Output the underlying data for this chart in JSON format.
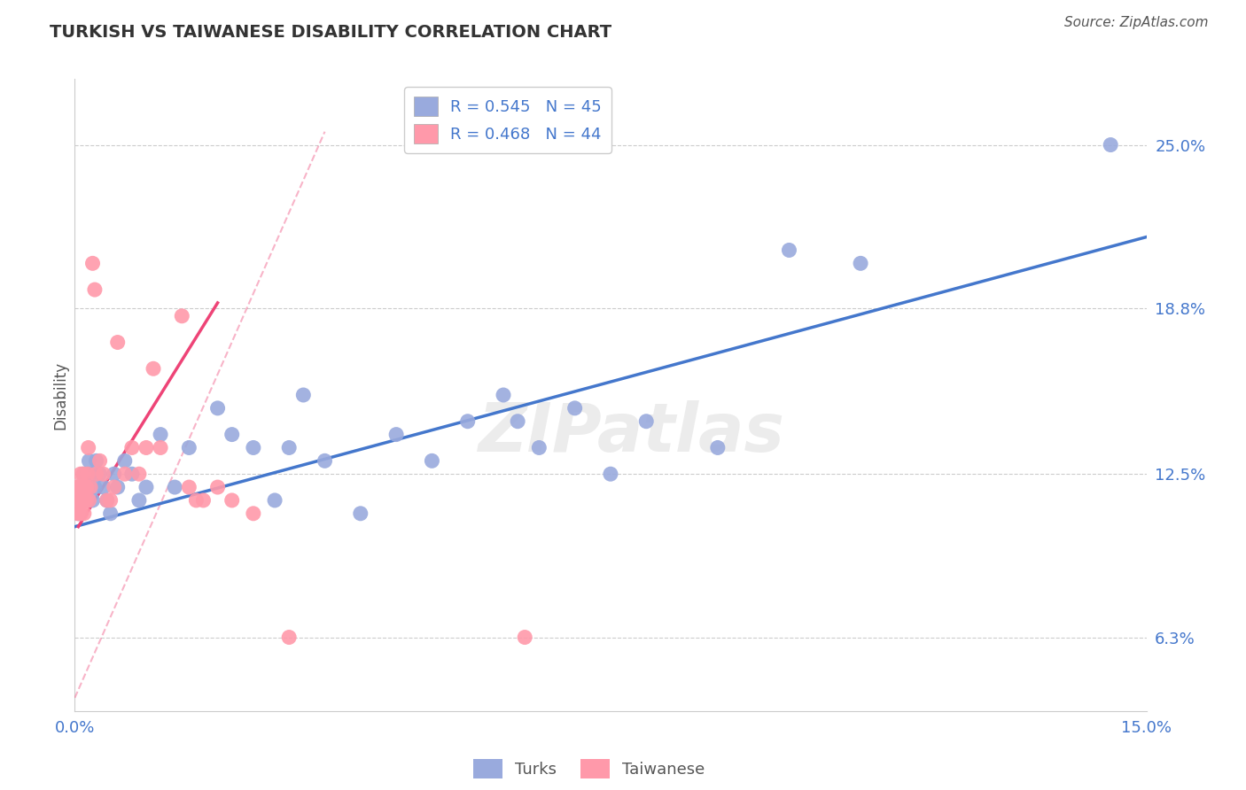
{
  "title": "TURKISH VS TAIWANESE DISABILITY CORRELATION CHART",
  "source": "Source: ZipAtlas.com",
  "ylabel": "Disability",
  "xlim": [
    0.0,
    15.0
  ],
  "ylim": [
    3.5,
    27.5
  ],
  "xticks": [
    0.0,
    3.75,
    7.5,
    11.25,
    15.0
  ],
  "xticklabels": [
    "0.0%",
    "",
    "",
    "",
    "15.0%"
  ],
  "yticks": [
    6.3,
    12.5,
    18.8,
    25.0
  ],
  "yticklabels": [
    "6.3%",
    "12.5%",
    "18.8%",
    "25.0%"
  ],
  "turks_R": 0.545,
  "turks_N": 45,
  "taiwanese_R": 0.468,
  "taiwanese_N": 44,
  "blue_color": "#99AADD",
  "pink_color": "#FF99AA",
  "blue_line_color": "#4477CC",
  "pink_line_color": "#EE4477",
  "legend_text_color": "#4477CC",
  "tick_color": "#4477CC",
  "title_color": "#333333",
  "grid_color": "#CCCCCC",
  "turks_x": [
    0.05,
    0.08,
    0.1,
    0.12,
    0.15,
    0.18,
    0.2,
    0.22,
    0.25,
    0.28,
    0.3,
    0.35,
    0.4,
    0.45,
    0.5,
    0.55,
    0.6,
    0.7,
    0.8,
    0.9,
    1.0,
    1.2,
    1.4,
    1.6,
    2.0,
    2.2,
    2.5,
    2.8,
    3.0,
    3.2,
    3.5,
    4.0,
    4.5,
    5.0,
    5.5,
    6.0,
    6.2,
    6.5,
    7.0,
    7.5,
    8.0,
    9.0,
    10.0,
    11.0,
    14.5
  ],
  "turks_y": [
    11.0,
    11.5,
    12.0,
    12.5,
    11.5,
    12.0,
    13.0,
    12.5,
    11.5,
    12.0,
    13.0,
    12.5,
    12.0,
    11.5,
    11.0,
    12.5,
    12.0,
    13.0,
    12.5,
    11.5,
    12.0,
    14.0,
    12.0,
    13.5,
    15.0,
    14.0,
    13.5,
    11.5,
    13.5,
    15.5,
    13.0,
    11.0,
    14.0,
    13.0,
    14.5,
    15.5,
    14.5,
    13.5,
    15.0,
    12.5,
    14.5,
    13.5,
    21.0,
    20.5,
    25.0
  ],
  "taiwanese_x": [
    0.02,
    0.03,
    0.04,
    0.05,
    0.06,
    0.07,
    0.08,
    0.09,
    0.1,
    0.11,
    0.12,
    0.13,
    0.14,
    0.15,
    0.16,
    0.17,
    0.18,
    0.19,
    0.2,
    0.22,
    0.25,
    0.28,
    0.3,
    0.35,
    0.4,
    0.45,
    0.5,
    0.55,
    0.6,
    0.7,
    0.8,
    0.9,
    1.0,
    1.1,
    1.2,
    1.5,
    1.6,
    1.7,
    1.8,
    2.0,
    2.2,
    2.5,
    3.0,
    6.3
  ],
  "taiwanese_y": [
    12.0,
    11.5,
    11.0,
    12.0,
    11.5,
    11.0,
    12.5,
    11.0,
    12.0,
    11.5,
    12.5,
    11.0,
    11.5,
    12.0,
    11.5,
    12.0,
    12.5,
    13.5,
    11.5,
    12.0,
    20.5,
    19.5,
    12.5,
    13.0,
    12.5,
    11.5,
    11.5,
    12.0,
    17.5,
    12.5,
    13.5,
    12.5,
    13.5,
    16.5,
    13.5,
    18.5,
    12.0,
    11.5,
    11.5,
    12.0,
    11.5,
    11.0,
    6.3,
    6.3
  ],
  "blue_line_x0": 0.0,
  "blue_line_y0": 10.5,
  "blue_line_x1": 15.0,
  "blue_line_y1": 21.5,
  "pink_line_x0": 0.05,
  "pink_line_y0": 10.5,
  "pink_line_x1": 2.0,
  "pink_line_y1": 19.0,
  "pink_dashed_x0": 0.0,
  "pink_dashed_y0": 4.0,
  "pink_dashed_x1": 3.5,
  "pink_dashed_y1": 25.5
}
